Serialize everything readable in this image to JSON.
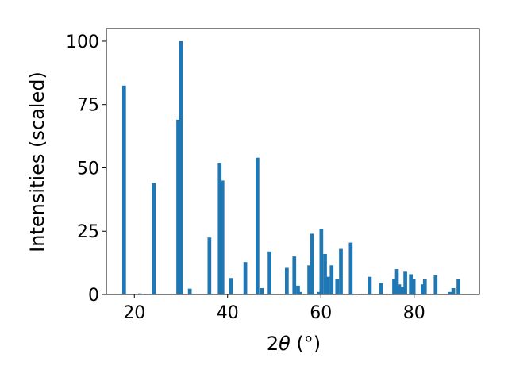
{
  "chart_data": {
    "type": "bar",
    "title": "",
    "xlabel_prefix": "2",
    "xlabel_symbol": "θ",
    "xlabel_suffix": " (°)",
    "ylabel": "Intensities (scaled)",
    "xlim": [
      14,
      94
    ],
    "ylim": [
      0,
      105
    ],
    "xticks": [
      20,
      40,
      60,
      80
    ],
    "yticks": [
      0,
      25,
      50,
      75,
      100
    ],
    "bar_width": 0.8,
    "bar_color": "#1f77b4",
    "grid": false,
    "legend": "none",
    "x": [
      17.8,
      21.2,
      24.2,
      29.4,
      30.0,
      31.9,
      36.1,
      38.3,
      38.9,
      40.7,
      43.8,
      46.4,
      47.3,
      49.0,
      52.7,
      54.3,
      55.1,
      55.6,
      57.5,
      58.1,
      59.6,
      60.1,
      60.9,
      61.5,
      62.3,
      63.5,
      64.3,
      66.4,
      67.2,
      70.5,
      72.9,
      75.7,
      76.3,
      76.8,
      77.4,
      78.1,
      79.3,
      79.9,
      81.8,
      82.3,
      84.6,
      87.7,
      88.4,
      89.5
    ],
    "values": [
      82.5,
      0.4,
      44.0,
      69.0,
      100.0,
      2.3,
      22.5,
      52.0,
      45.0,
      6.5,
      12.8,
      54.0,
      2.5,
      17.0,
      10.5,
      15.0,
      3.5,
      1.0,
      11.5,
      24.0,
      1.0,
      26.0,
      16.0,
      7.0,
      11.5,
      6.0,
      18.0,
      20.5,
      0.3,
      7.0,
      4.5,
      6.0,
      10.0,
      4.0,
      3.0,
      9.0,
      8.0,
      6.0,
      4.0,
      6.0,
      7.5,
      1.0,
      2.5,
      6.0
    ]
  }
}
